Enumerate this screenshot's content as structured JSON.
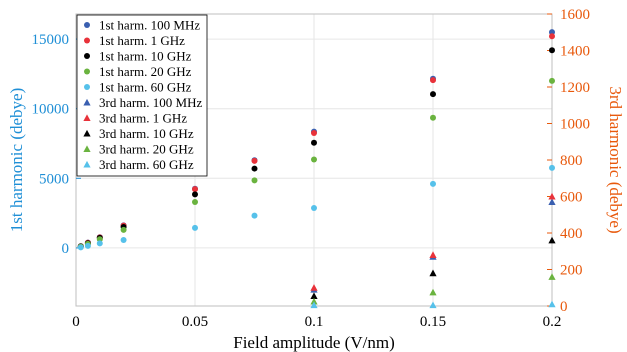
{
  "chart_data": {
    "type": "scatter",
    "title": "",
    "xlabel": "Field amplitude (V/nm)",
    "ylabel_left": "1st harmonic (debye)",
    "ylabel_right": "3rd harmonic (debye)",
    "xlim": [
      0,
      0.2
    ],
    "ylim_left": [
      -4170,
      16800
    ],
    "ylim_right": [
      0,
      1600
    ],
    "x_ticks": [
      "0",
      "0.05",
      "0.1",
      "0.15",
      "0.2"
    ],
    "y_left_ticks": [
      "0",
      "5000",
      "10000",
      "15000"
    ],
    "y_right_ticks": [
      "0",
      "200",
      "400",
      "600",
      "800",
      "1000",
      "1200",
      "1400",
      "1600"
    ],
    "grid": true,
    "legend_position": "top-left",
    "colors": {
      "left_axis": "#1f8fd6",
      "right_axis": "#e8590c",
      "100MHz": "#3a5fb0",
      "1GHz": "#e8323a",
      "10GHz": "#000000",
      "20GHz": "#6ab33f",
      "60GHz": "#56c1ea"
    },
    "series": [
      {
        "name": "1st harm. 100 MHz",
        "marker": "circle",
        "axis": "left",
        "color": "#3a5fb0",
        "x": [
          0.002,
          0.005,
          0.01,
          0.02,
          0.05,
          0.075,
          0.1,
          0.15,
          0.2
        ],
        "y": [
          130,
          380,
          770,
          1620,
          4250,
          6300,
          8350,
          12150,
          15500
        ]
      },
      {
        "name": "1st harm. 1 GHz",
        "marker": "circle",
        "axis": "left",
        "color": "#e8323a",
        "x": [
          0.002,
          0.005,
          0.01,
          0.02,
          0.05,
          0.075,
          0.1,
          0.15,
          0.2
        ],
        "y": [
          120,
          370,
          760,
          1600,
          4220,
          6250,
          8250,
          12050,
          15200
        ]
      },
      {
        "name": "1st harm. 10 GHz",
        "marker": "circle",
        "axis": "left",
        "color": "#000000",
        "x": [
          0.002,
          0.005,
          0.01,
          0.02,
          0.05,
          0.075,
          0.1,
          0.15,
          0.2
        ],
        "y": [
          110,
          340,
          720,
          1500,
          3850,
          5700,
          7550,
          11050,
          14200
        ]
      },
      {
        "name": "1st harm. 20 GHz",
        "marker": "circle",
        "axis": "left",
        "color": "#6ab33f",
        "x": [
          0.002,
          0.005,
          0.01,
          0.02,
          0.05,
          0.075,
          0.1,
          0.15,
          0.2
        ],
        "y": [
          90,
          290,
          620,
          1300,
          3300,
          4850,
          6350,
          9350,
          12000
        ]
      },
      {
        "name": "1st harm. 60 GHz",
        "marker": "circle",
        "axis": "left",
        "color": "#56c1ea",
        "x": [
          0.002,
          0.005,
          0.01,
          0.02,
          0.05,
          0.075,
          0.1,
          0.15,
          0.2
        ],
        "y": [
          40,
          150,
          330,
          570,
          1440,
          2320,
          2870,
          4600,
          5750
        ]
      },
      {
        "name": "3rd harm. 100 MHz",
        "marker": "triangle",
        "axis": "right",
        "color": "#3a5fb0",
        "x": [
          0.1,
          0.15,
          0.2
        ],
        "y": [
          90,
          270,
          570
        ]
      },
      {
        "name": "3rd harm. 1 GHz",
        "marker": "triangle",
        "axis": "right",
        "color": "#e8323a",
        "x": [
          0.1,
          0.15,
          0.2
        ],
        "y": [
          100,
          280,
          600
        ]
      },
      {
        "name": "3rd harm. 10 GHz",
        "marker": "triangle",
        "axis": "right",
        "color": "#000000",
        "x": [
          0.1,
          0.15,
          0.2
        ],
        "y": [
          55,
          180,
          360
        ]
      },
      {
        "name": "3rd harm. 20 GHz",
        "marker": "triangle",
        "axis": "right",
        "color": "#6ab33f",
        "x": [
          0.1,
          0.15,
          0.2
        ],
        "y": [
          25,
          75,
          160
        ]
      },
      {
        "name": "3rd harm. 60 GHz",
        "marker": "triangle",
        "axis": "right",
        "color": "#56c1ea",
        "x": [
          0.1,
          0.15,
          0.2
        ],
        "y": [
          5,
          5,
          10
        ]
      }
    ]
  }
}
